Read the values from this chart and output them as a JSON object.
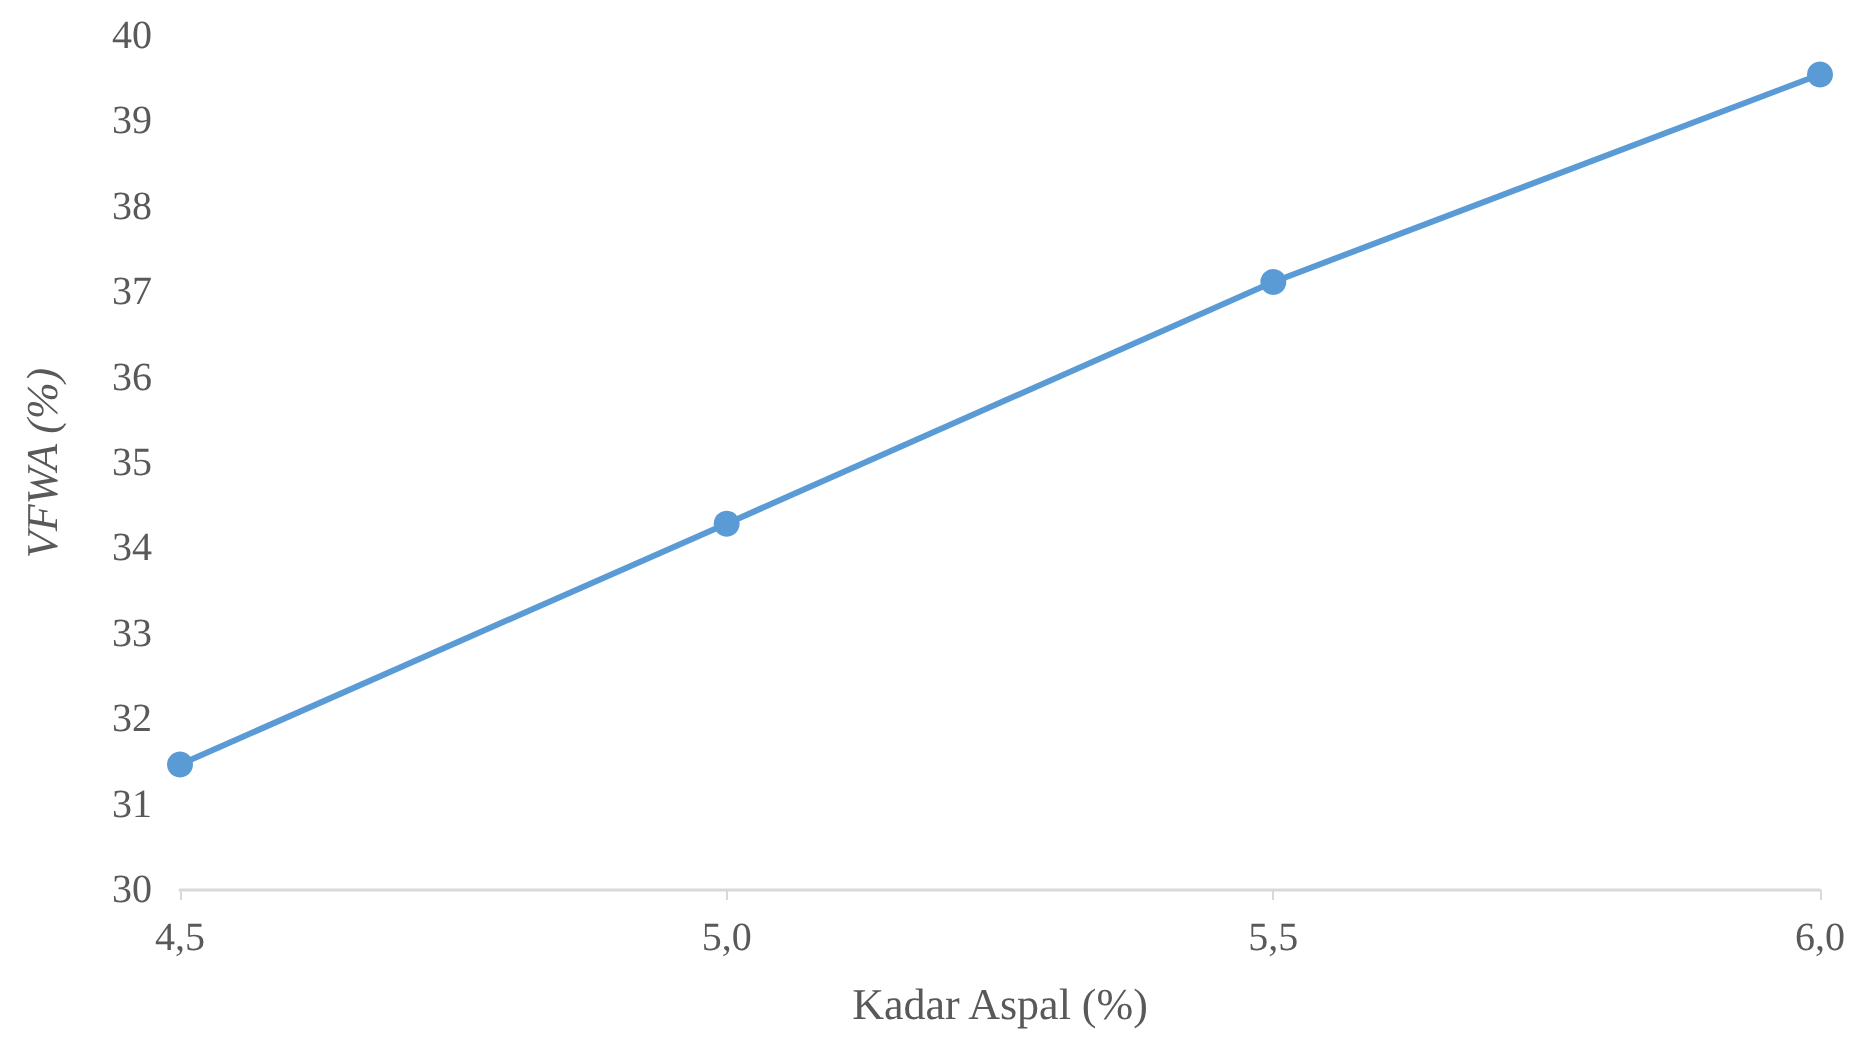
{
  "chart_data": {
    "type": "line",
    "xlabel": "Kadar Aspal (%)",
    "ylabel": "VFWA (%)",
    "categories": [
      "4,5",
      "5,0",
      "5,5",
      "6,0"
    ],
    "series": [
      {
        "color": "#5b9bd5",
        "values": [
          31.47,
          34.29,
          37.12,
          39.55
        ]
      }
    ],
    "ylim": [
      30,
      40
    ],
    "yticks": [
      30,
      31,
      32,
      33,
      34,
      35,
      36,
      37,
      38,
      39,
      40
    ],
    "grid": false,
    "marker": "circle",
    "line_style": "solid"
  }
}
